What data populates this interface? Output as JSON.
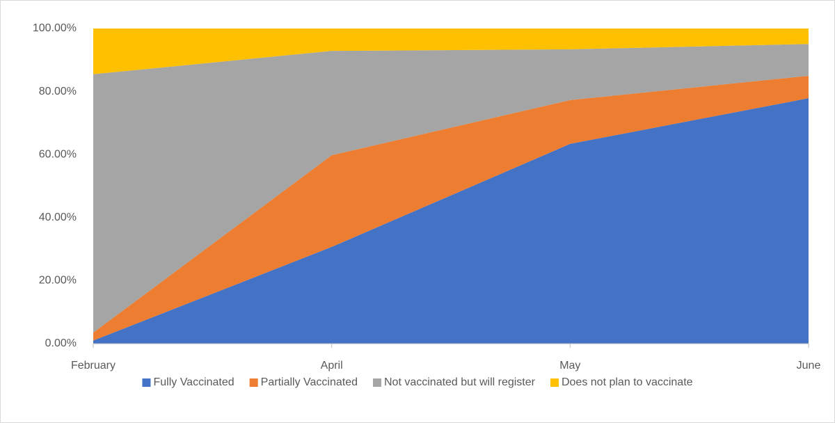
{
  "chart_data": {
    "type": "stacked_area",
    "categories": [
      "February",
      "April",
      "May",
      "June"
    ],
    "series": [
      {
        "name": "Fully Vaccinated",
        "color": "#4472c4",
        "values": [
          1,
          30.7,
          63.4,
          77.9
        ]
      },
      {
        "name": "Partially Vaccinated",
        "color": "#ed7d31",
        "values": [
          2.5,
          29.1,
          13.9,
          7.1
        ]
      },
      {
        "name": "Not vaccinated but will register",
        "color": "#a5a5a5",
        "values": [
          82,
          33.1,
          16.1,
          10.1
        ]
      },
      {
        "name": "Does not plan to vaccinate",
        "color": "#ffc000",
        "values": [
          14.5,
          7.1,
          6.6,
          4.9
        ]
      }
    ],
    "ylim": [
      0,
      100
    ],
    "yticks": [
      {
        "value": 0,
        "label": "0.00%"
      },
      {
        "value": 20,
        "label": "20.00%"
      },
      {
        "value": 40,
        "label": "40.00%"
      },
      {
        "value": 60,
        "label": "60.00%"
      },
      {
        "value": 80,
        "label": "80.00%"
      },
      {
        "value": 100,
        "label": "100.00%"
      }
    ],
    "grid": false,
    "legend": "bottom"
  }
}
